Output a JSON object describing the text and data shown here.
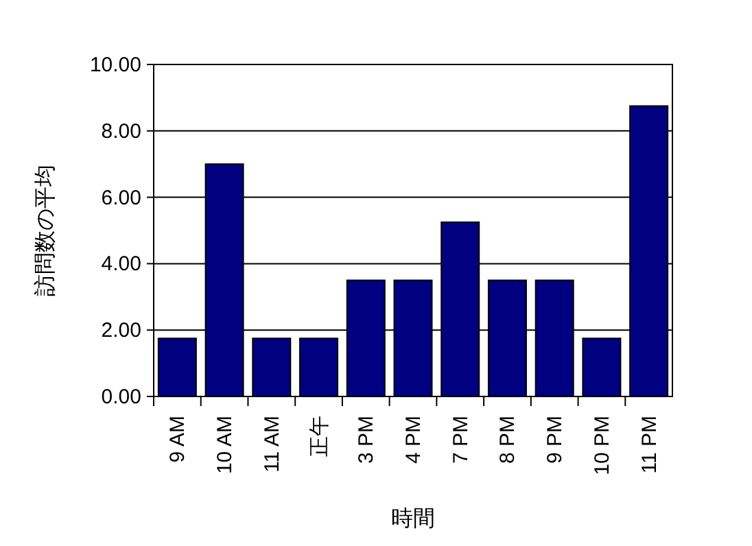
{
  "chart_data": {
    "type": "bar",
    "xlabel": "時間",
    "ylabel": "訪問数の平均",
    "categories": [
      "9 AM",
      "10 AM",
      "11 AM",
      "正午",
      "3 PM",
      "4 PM",
      "7 PM",
      "8 PM",
      "9 PM",
      "10 PM",
      "11 PM"
    ],
    "values": [
      1.75,
      7,
      1.75,
      1.75,
      3.5,
      3.5,
      5.25,
      3.5,
      3.5,
      1.75,
      8.75
    ],
    "color": "#000080",
    "ylim": [
      0,
      10
    ],
    "yticks": [
      {
        "value": 0,
        "label": "0.00"
      },
      {
        "value": 2,
        "label": "2.00"
      },
      {
        "value": 4,
        "label": "4.00"
      },
      {
        "value": 6,
        "label": "6.00"
      },
      {
        "value": 8,
        "label": "8.00"
      },
      {
        "value": 10,
        "label": "10.00"
      }
    ],
    "grid": "y"
  }
}
